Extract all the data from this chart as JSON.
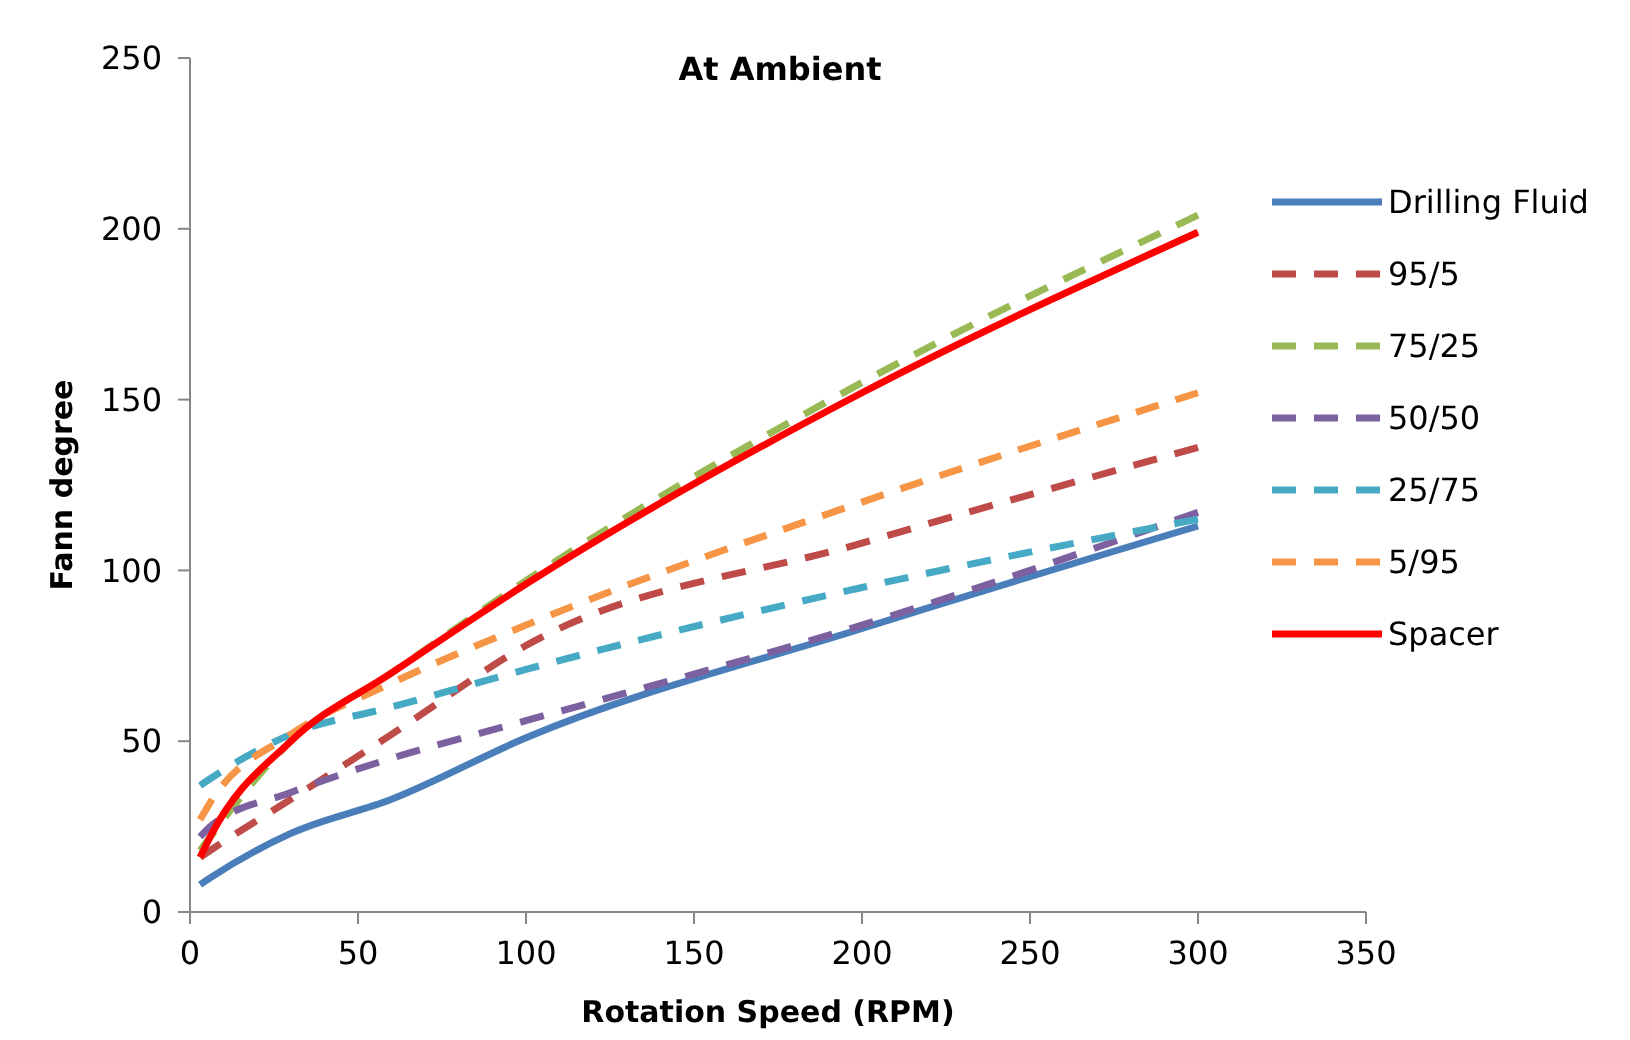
{
  "chart_data": {
    "type": "line",
    "title": "At Ambient",
    "xlabel": "Rotation Speed (RPM)",
    "ylabel": "Fann degree",
    "x": [
      3,
      6,
      30,
      60,
      100,
      200,
      300
    ],
    "xlim": [
      0,
      350
    ],
    "xticks": [
      0,
      50,
      100,
      150,
      200,
      250,
      300,
      350
    ],
    "ylim": [
      0,
      250
    ],
    "yticks": [
      0,
      50,
      100,
      150,
      200,
      250
    ],
    "grid": false,
    "legend": "right",
    "marker": "none",
    "series": [
      {
        "name": "Drilling Fluid",
        "color": "#4a7ebb",
        "line_style": "solid",
        "values": [
          8,
          10,
          23,
          33,
          51,
          83,
          113
        ]
      },
      {
        "name": "95/5",
        "color": "#be4b48",
        "line_style": "dashed",
        "values": [
          16,
          18,
          33,
          52,
          78,
          108,
          136
        ]
      },
      {
        "name": "75/25",
        "color": "#98b954",
        "line_style": "dashed",
        "values": [
          18,
          22,
          50,
          70,
          97,
          155,
          204
        ]
      },
      {
        "name": "50/50",
        "color": "#7d60a0",
        "line_style": "dashed",
        "values": [
          22,
          25,
          35,
          45,
          56,
          84,
          117
        ]
      },
      {
        "name": "25/75",
        "color": "#46aac5",
        "line_style": "dashed",
        "values": [
          37,
          39,
          52,
          60,
          71,
          95,
          115
        ]
      },
      {
        "name": "5/95",
        "color": "#f69545",
        "line_style": "dashed",
        "values": [
          27,
          32,
          52,
          67,
          84,
          120,
          152
        ]
      },
      {
        "name": "Spacer",
        "color": "#ff0000",
        "line_style": "solid",
        "values": [
          16,
          22,
          50,
          70,
          96,
          152,
          199
        ]
      }
    ]
  }
}
